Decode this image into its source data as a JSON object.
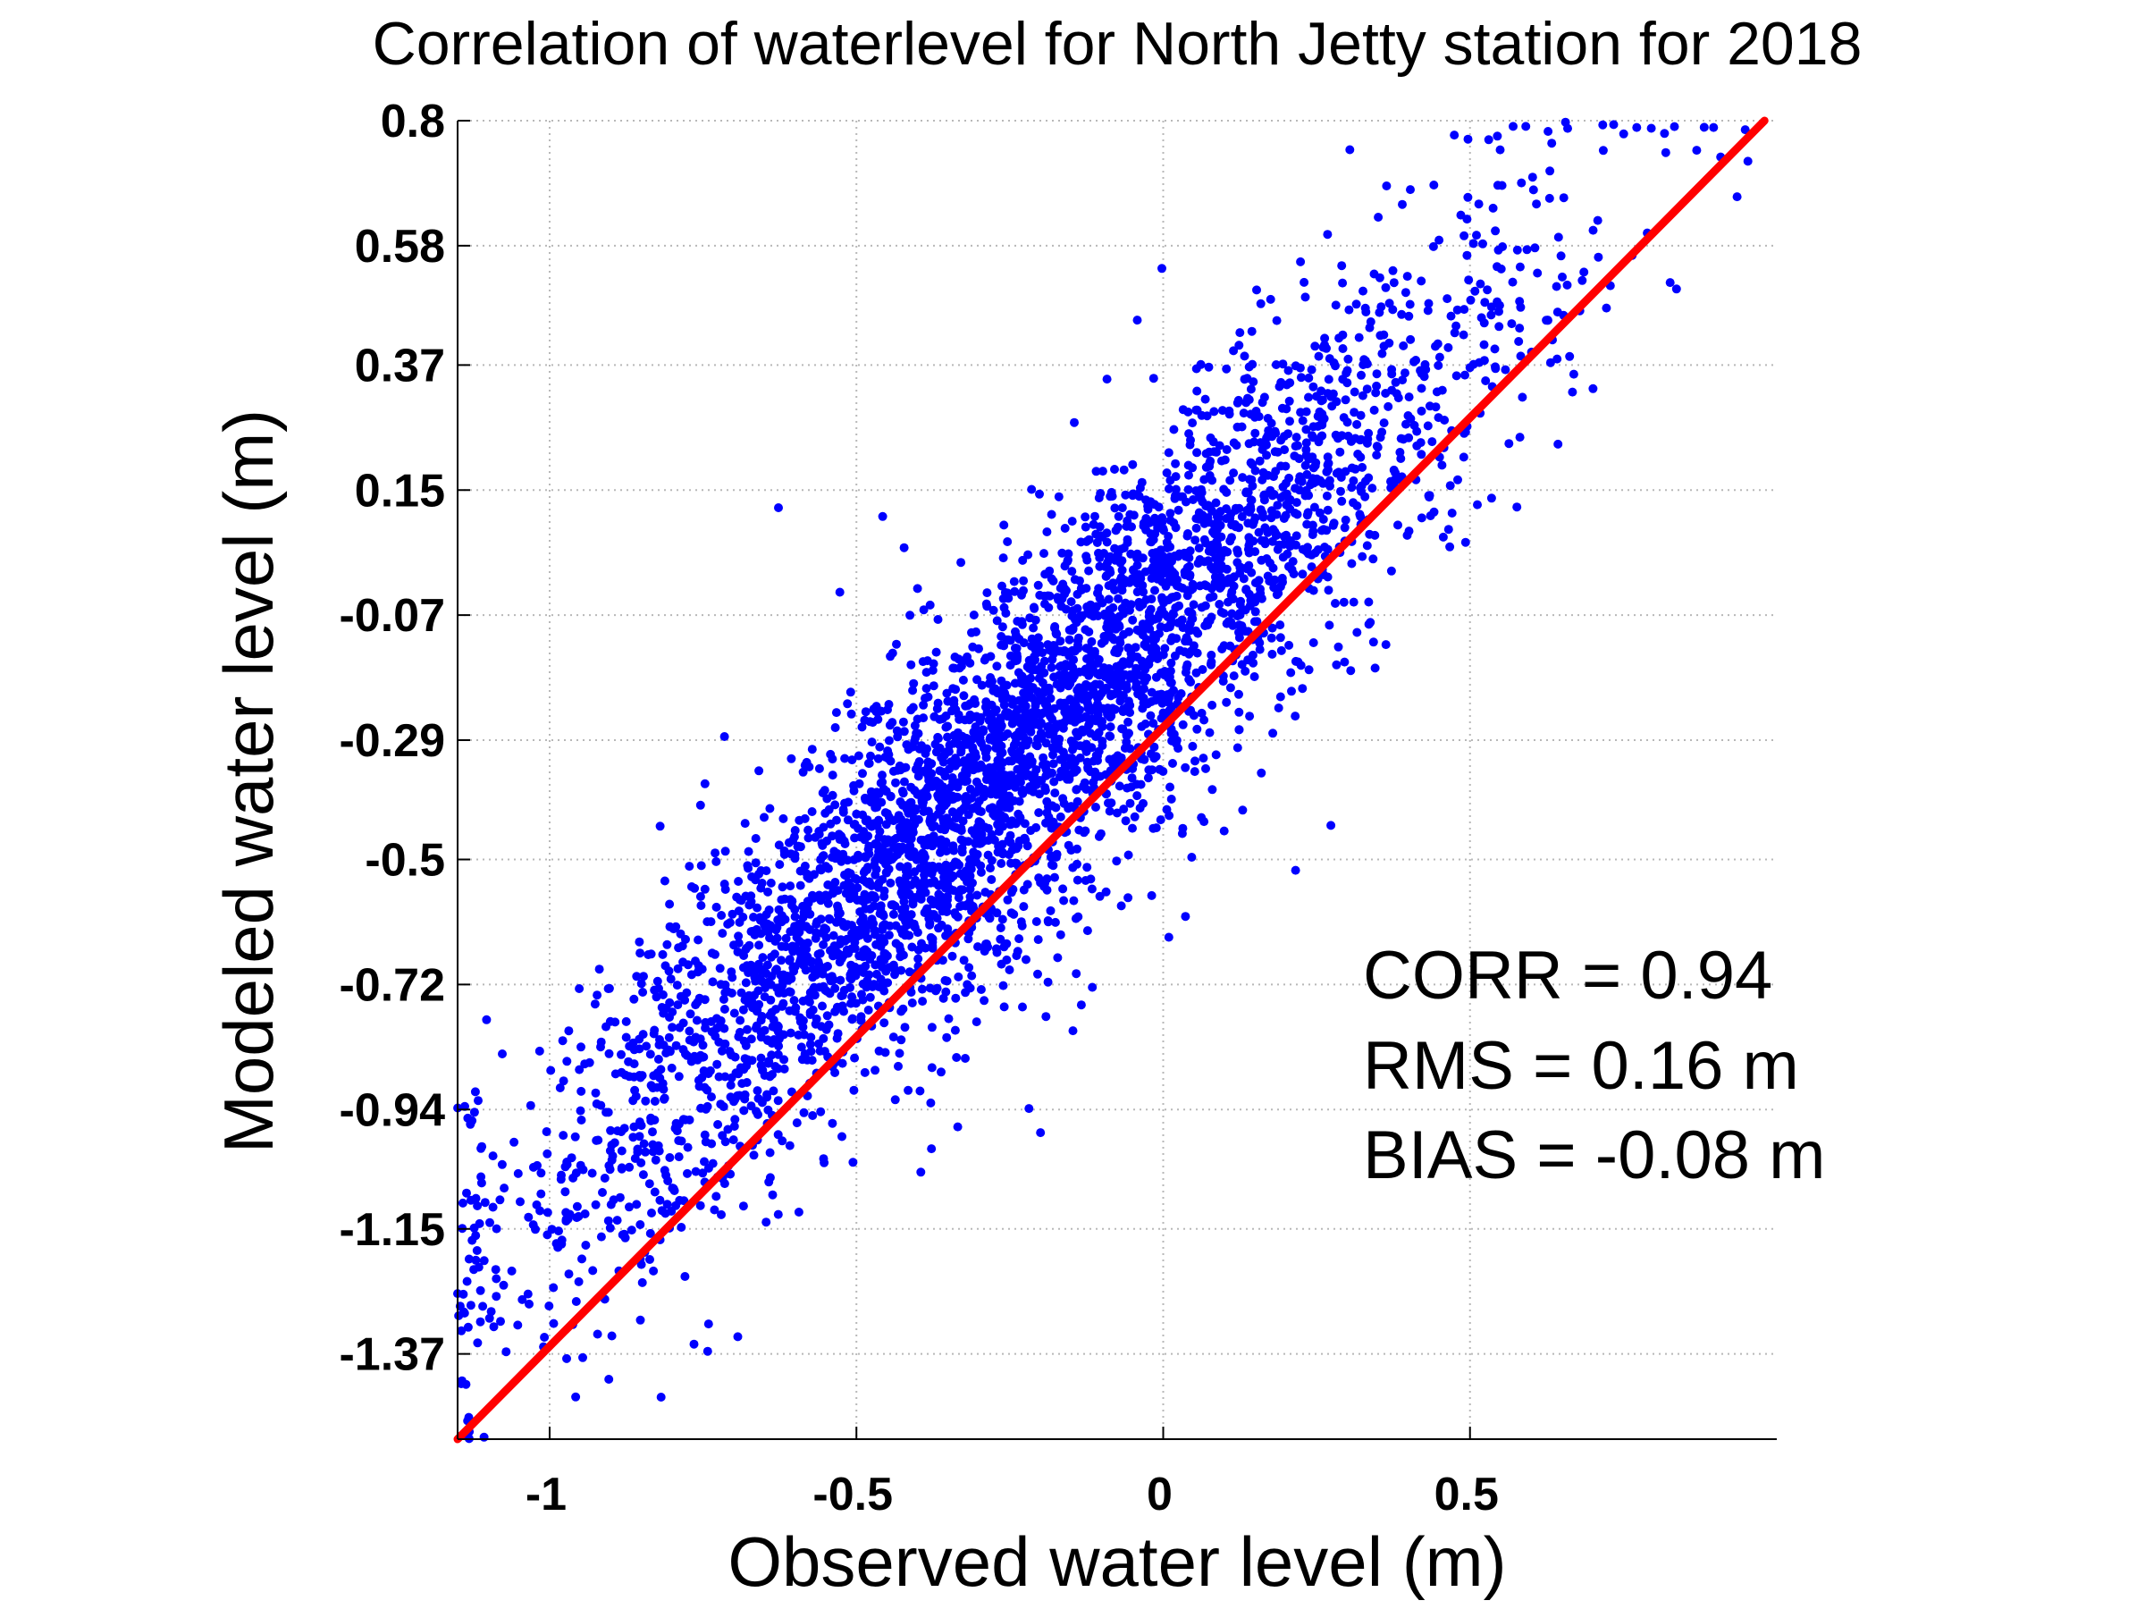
{
  "chart_data": {
    "type": "scatter",
    "title": "Correlation of waterlevel for North Jetty station for 2018",
    "xlabel": "Observed water level (m)",
    "ylabel": "Modeled water level (m)",
    "xlim": [
      -1.15,
      1.0
    ],
    "ylim": [
      -1.52,
      0.8
    ],
    "x_ticks": [
      -1,
      -0.5,
      0,
      0.5
    ],
    "x_tick_labels": [
      "-1",
      "-0.5",
      "0",
      "0.5"
    ],
    "y_ticks": [
      0.8,
      0.58,
      0.37,
      0.15,
      -0.07,
      -0.29,
      -0.5,
      -0.72,
      -0.94,
      -1.15,
      -1.37
    ],
    "y_tick_labels": [
      "0.8",
      "0.58",
      "0.37",
      "0.15",
      "-0.07",
      "-0.29",
      "-0.5",
      "-0.72",
      "-0.94",
      "-1.15",
      "-1.37"
    ],
    "grid": true,
    "point_color": "#0000ff",
    "fit_line_color": "#ff0000",
    "fit_line": {
      "x": [
        -1.15,
        0.98
      ],
      "y": [
        -1.52,
        0.8
      ]
    },
    "scatter_trend": {
      "slope": 1.0,
      "intercept": -0.08,
      "spread": 0.16
    },
    "stats": {
      "corr": "CORR = 0.94",
      "rms": "RMS = 0.16 m",
      "bias": "BIAS = -0.08 m"
    }
  }
}
